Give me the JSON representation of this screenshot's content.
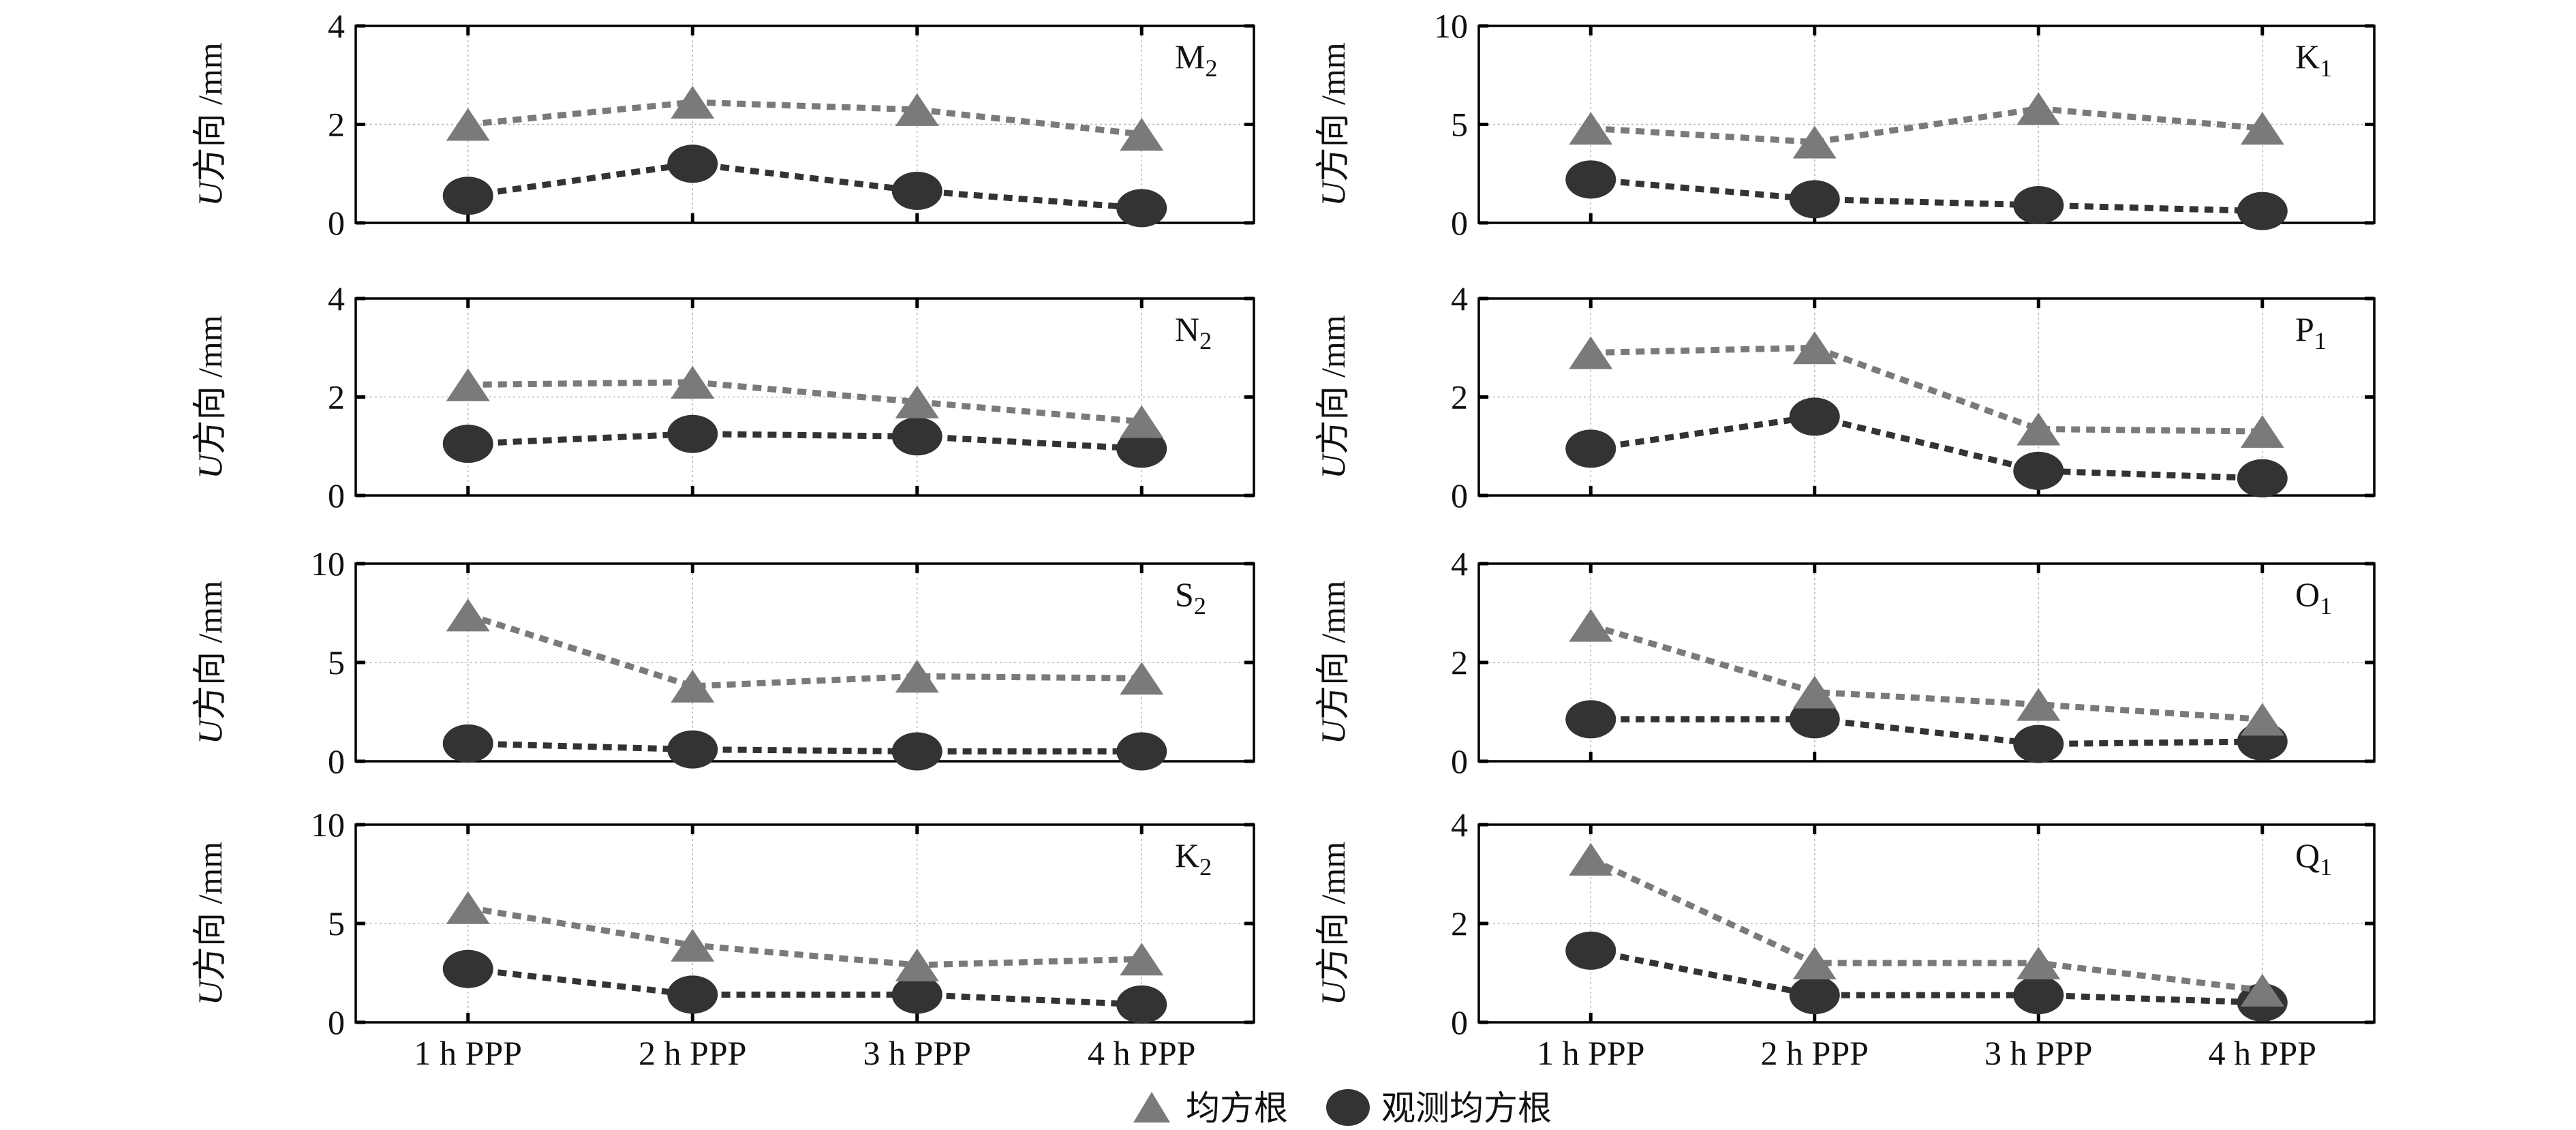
{
  "chart_data": [
    {
      "type": "line",
      "panel_label": "M",
      "panel_subscript": "2",
      "ylabel": "方向 /mm",
      "ylabel_var": "U",
      "categories": [
        "1 h PPP",
        "2 h PPP",
        "3 h PPP",
        "4 h PPP"
      ],
      "ylim": [
        0,
        4
      ],
      "yticks": [
        "0",
        "2",
        "4"
      ],
      "series": [
        {
          "name": "均方根",
          "values": [
            2.0,
            2.45,
            2.3,
            1.8
          ]
        },
        {
          "name": "观测均方根",
          "values": [
            0.55,
            1.2,
            0.65,
            0.3
          ]
        }
      ]
    },
    {
      "type": "line",
      "panel_label": "K",
      "panel_subscript": "1",
      "ylabel": "方向 /mm",
      "ylabel_var": "U",
      "categories": [
        "1 h PPP",
        "2 h PPP",
        "3 h PPP",
        "4 h PPP"
      ],
      "ylim": [
        0,
        10
      ],
      "yticks": [
        "0",
        "5",
        "10"
      ],
      "series": [
        {
          "name": "均方根",
          "values": [
            4.8,
            4.1,
            5.8,
            4.8
          ]
        },
        {
          "name": "观测均方根",
          "values": [
            2.2,
            1.2,
            0.9,
            0.6
          ]
        }
      ]
    },
    {
      "type": "line",
      "panel_label": "N",
      "panel_subscript": "2",
      "ylabel": "方向 /mm",
      "ylabel_var": "U",
      "categories": [
        "1 h PPP",
        "2 h PPP",
        "3 h PPP",
        "4 h PPP"
      ],
      "ylim": [
        0,
        4
      ],
      "yticks": [
        "0",
        "2",
        "4"
      ],
      "series": [
        {
          "name": "均方根",
          "values": [
            2.25,
            2.3,
            1.9,
            1.5
          ]
        },
        {
          "name": "观测均方根",
          "values": [
            1.05,
            1.25,
            1.2,
            0.95
          ]
        }
      ]
    },
    {
      "type": "line",
      "panel_label": "P",
      "panel_subscript": "1",
      "ylabel": "方向 /mm",
      "ylabel_var": "U",
      "categories": [
        "1 h PPP",
        "2 h PPP",
        "3 h PPP",
        "4 h PPP"
      ],
      "ylim": [
        0,
        4
      ],
      "yticks": [
        "0",
        "2",
        "4"
      ],
      "series": [
        {
          "name": "均方根",
          "values": [
            2.9,
            3.0,
            1.35,
            1.3
          ]
        },
        {
          "name": "观测均方根",
          "values": [
            0.95,
            1.6,
            0.5,
            0.35
          ]
        }
      ]
    },
    {
      "type": "line",
      "panel_label": "S",
      "panel_subscript": "2",
      "ylabel": "方向 /mm",
      "ylabel_var": "U",
      "categories": [
        "1 h PPP",
        "2 h PPP",
        "3 h PPP",
        "4 h PPP"
      ],
      "ylim": [
        0,
        10
      ],
      "yticks": [
        "0",
        "5",
        "10"
      ],
      "series": [
        {
          "name": "均方根",
          "values": [
            7.4,
            3.8,
            4.3,
            4.2
          ]
        },
        {
          "name": "观测均方根",
          "values": [
            0.9,
            0.6,
            0.5,
            0.5
          ]
        }
      ]
    },
    {
      "type": "line",
      "panel_label": "O",
      "panel_subscript": "1",
      "ylabel": "方向 /mm",
      "ylabel_var": "U",
      "categories": [
        "1 h PPP",
        "2 h PPP",
        "3 h PPP",
        "4 h PPP"
      ],
      "ylim": [
        0,
        4
      ],
      "yticks": [
        "0",
        "2",
        "4"
      ],
      "series": [
        {
          "name": "均方根",
          "values": [
            2.75,
            1.4,
            1.15,
            0.85
          ]
        },
        {
          "name": "观测均方根",
          "values": [
            0.85,
            0.85,
            0.35,
            0.4
          ]
        }
      ]
    },
    {
      "type": "line",
      "panel_label": "K",
      "panel_subscript": "2",
      "ylabel": "方向 /mm",
      "ylabel_var": "U",
      "categories": [
        "1 h PPP",
        "2 h PPP",
        "3 h PPP",
        "4 h PPP"
      ],
      "ylim": [
        0,
        10
      ],
      "yticks": [
        "0",
        "5",
        "10"
      ],
      "series": [
        {
          "name": "均方根",
          "values": [
            5.8,
            3.9,
            2.9,
            3.2
          ]
        },
        {
          "name": "观测均方根",
          "values": [
            2.7,
            1.4,
            1.4,
            0.9
          ]
        }
      ]
    },
    {
      "type": "line",
      "panel_label": "Q",
      "panel_subscript": "1",
      "ylabel": "方向 /mm",
      "ylabel_var": "U",
      "categories": [
        "1 h PPP",
        "2 h PPP",
        "3 h PPP",
        "4 h PPP"
      ],
      "ylim": [
        0,
        4
      ],
      "yticks": [
        "0",
        "2",
        "4"
      ],
      "series": [
        {
          "name": "均方根",
          "values": [
            3.3,
            1.2,
            1.2,
            0.65
          ]
        },
        {
          "name": "观测均方根",
          "values": [
            1.45,
            0.55,
            0.55,
            0.4
          ]
        }
      ]
    }
  ],
  "legend": {
    "items": [
      {
        "label": "均方根",
        "marker": "triangle",
        "color": "#7a7a7a"
      },
      {
        "label": "观测均方根",
        "marker": "circle",
        "color": "#333333"
      }
    ]
  },
  "colors": {
    "rms_series": "#7a7a7a",
    "observed_series": "#333333"
  }
}
